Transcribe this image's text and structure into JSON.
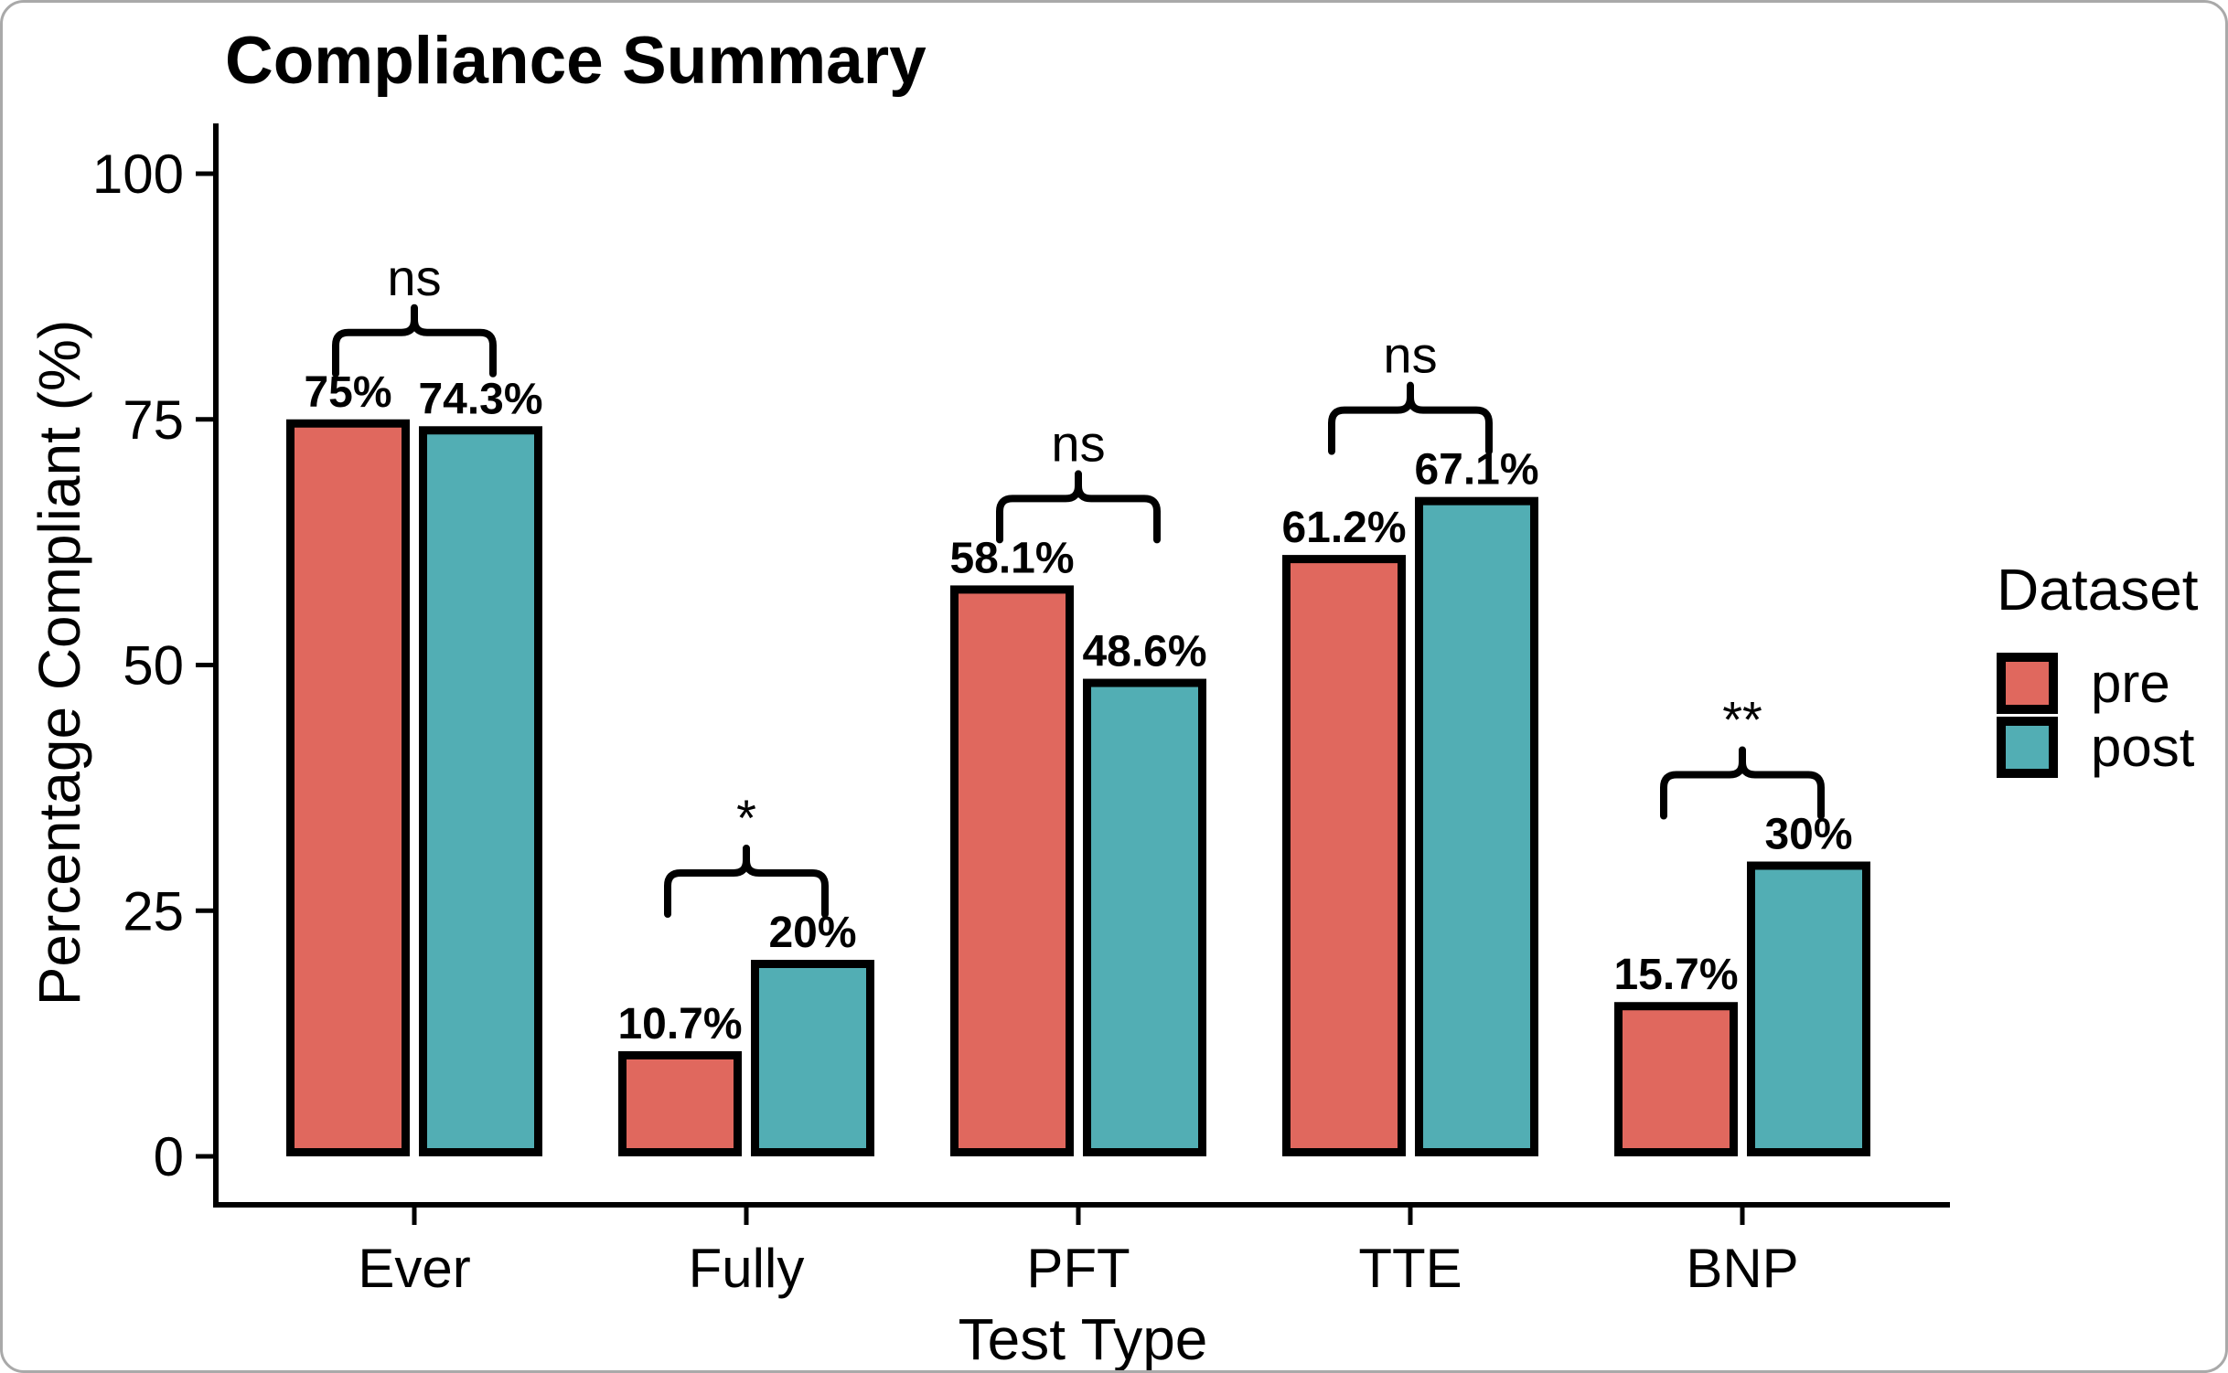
{
  "figure": {
    "title": "Compliance Summary",
    "background": "#ffffff",
    "frame_color": "#a9a9a9"
  },
  "chart_data": {
    "type": "bar",
    "title": "Compliance Summary",
    "xlabel": "Test Type",
    "ylabel": "Percentage Compliant (%)",
    "ylim": [
      0,
      100
    ],
    "y_ticks": [
      "0",
      "25",
      "50",
      "75",
      "100"
    ],
    "y_tick_values": [
      0,
      25,
      50,
      75,
      100
    ],
    "grid": false,
    "legend_position": "right",
    "categories": [
      "Ever",
      "Fully",
      "PFT",
      "TTE",
      "BNP"
    ],
    "series": [
      {
        "name": "pre",
        "color": "#E0685E",
        "values": [
          75,
          10.7,
          58.1,
          61.2,
          15.7
        ],
        "labels": [
          "75%",
          "10.7%",
          "58.1%",
          "61.2%",
          "15.7%"
        ]
      },
      {
        "name": "post",
        "color": "#52AEB4",
        "values": [
          74.3,
          20,
          48.6,
          67.1,
          30
        ],
        "labels": [
          "74.3%",
          "20%",
          "48.6%",
          "67.1%",
          "30%"
        ]
      }
    ],
    "significance": [
      "ns",
      "*",
      "ns",
      "ns",
      "**"
    ],
    "bar_outline_color": "#000000",
    "axis_color": "#000000"
  },
  "legend": {
    "title": "Dataset",
    "items": [
      {
        "label": "pre",
        "color": "#E0685E"
      },
      {
        "label": "post",
        "color": "#52AEB4"
      }
    ]
  }
}
